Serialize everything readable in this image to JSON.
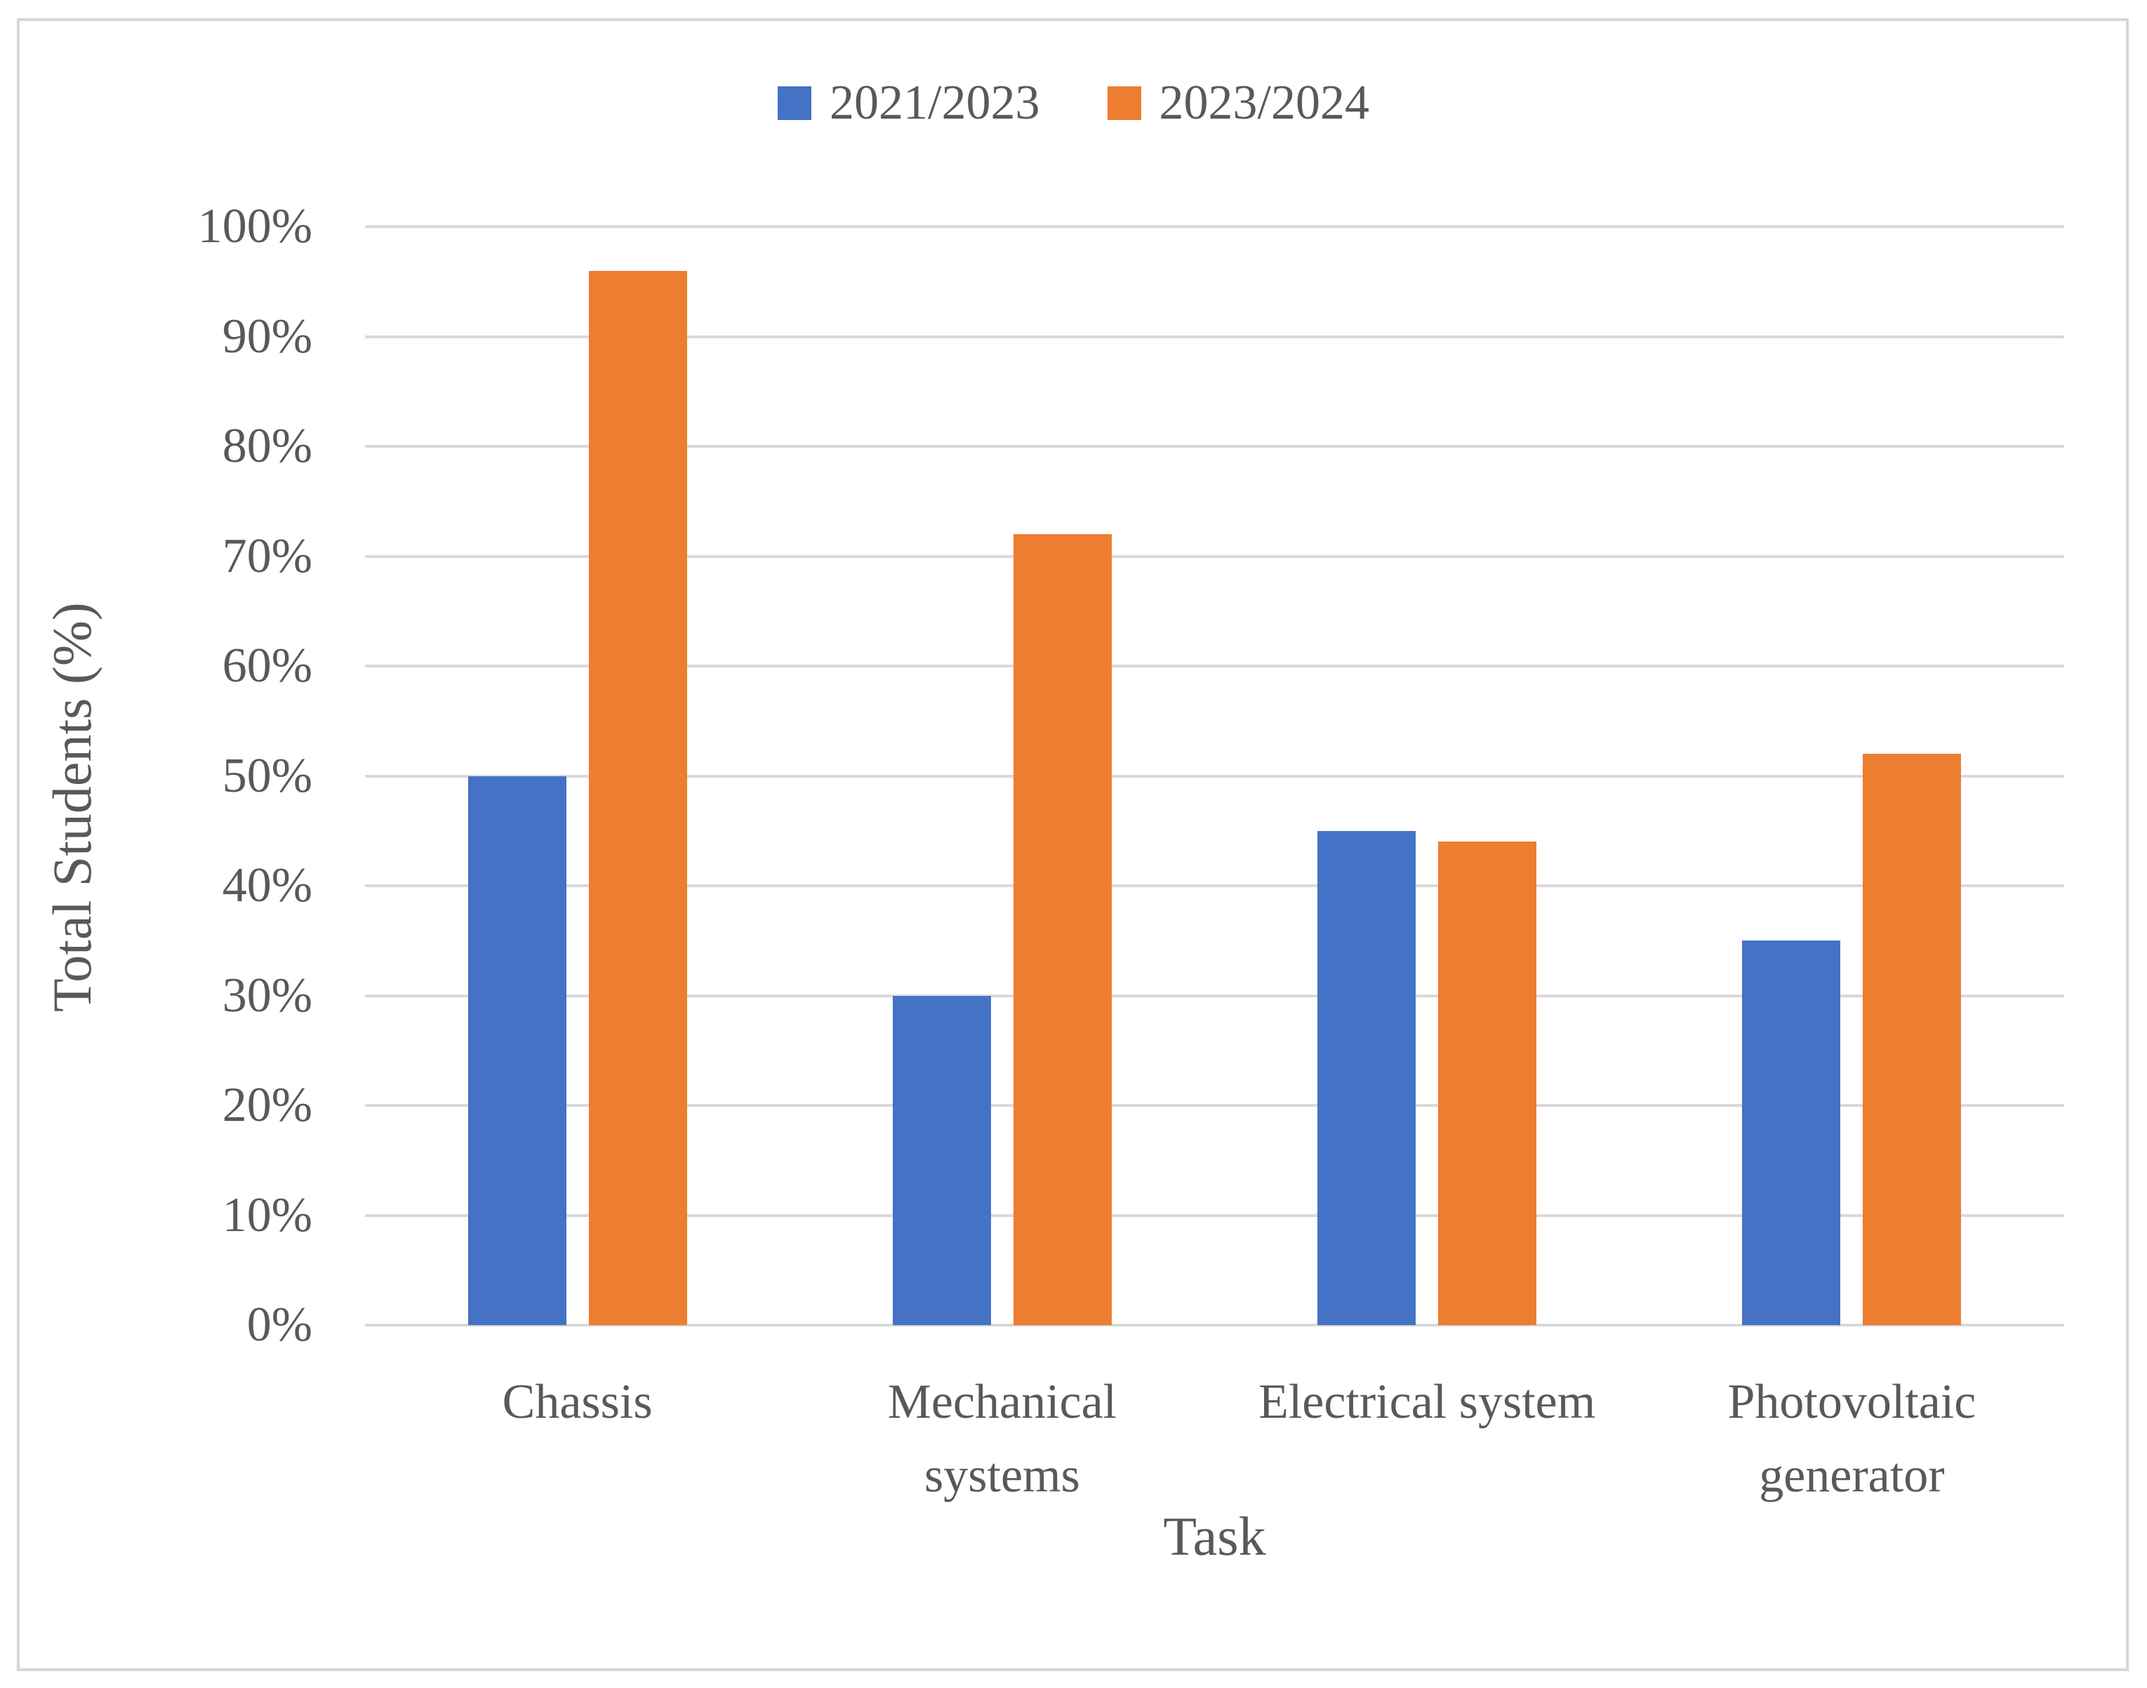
{
  "chart_data": {
    "type": "bar",
    "title": "",
    "xlabel": "Task",
    "ylabel": "Total Students (%)",
    "categories": [
      "Chassis",
      "Mechanical systems",
      "Electrical system",
      "Photovoltaic generator"
    ],
    "series": [
      {
        "name": "2021/2023",
        "color": "#4472C4",
        "values": [
          50,
          30,
          45,
          35
        ]
      },
      {
        "name": "2023/2024",
        "color": "#ED7D31",
        "values": [
          96,
          72,
          44,
          52
        ]
      }
    ],
    "ylim": [
      0,
      100
    ],
    "ytick_step": 10,
    "ytick_labels": [
      "0%",
      "10%",
      "20%",
      "30%",
      "40%",
      "50%",
      "60%",
      "70%",
      "80%",
      "90%",
      "100%"
    ],
    "grid": "horizontal",
    "legend_position": "top"
  },
  "colors": {
    "background": "#FFFFFF",
    "gridline": "#D9D9D9",
    "frame_border": "#D6D6D6",
    "text": "#595959",
    "series_blue": "#4472C4",
    "series_orange": "#ED7D31"
  }
}
